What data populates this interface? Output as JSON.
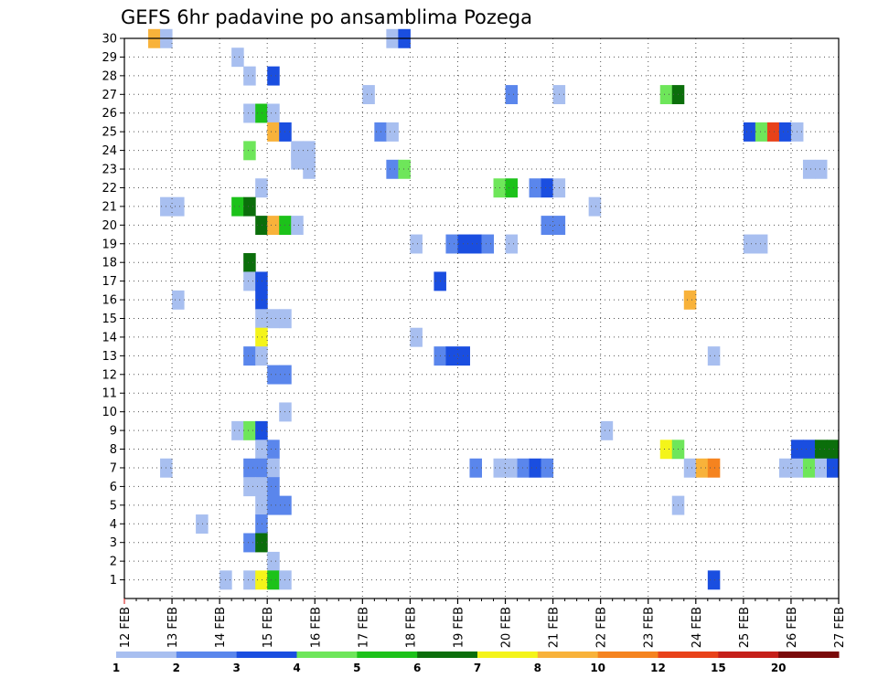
{
  "chart_data": {
    "type": "heatmap",
    "title": "GEFS 6hr padavine po ansamblima Pozega",
    "xlabel": "",
    "ylabel": "",
    "x_tick_labels": [
      "12 FEB",
      "13 FEB",
      "14 FEB",
      "15 FEB",
      "16 FEB",
      "17 FEB",
      "18 FEB",
      "19 FEB",
      "20 FEB",
      "21 FEB",
      "22 FEB",
      "23 FEB",
      "24 FEB",
      "25 FEB",
      "26 FEB",
      "27 FEB"
    ],
    "y_tick_labels": [
      "1",
      "2",
      "3",
      "4",
      "5",
      "6",
      "7",
      "8",
      "9",
      "10",
      "11",
      "12",
      "13",
      "14",
      "15",
      "16",
      "17",
      "18",
      "19",
      "20",
      "21",
      "22",
      "23",
      "24",
      "25",
      "26",
      "27",
      "28",
      "29",
      "30"
    ],
    "xlim_days": [
      0,
      15
    ],
    "ylim_members": [
      0,
      30
    ],
    "time_step_hours": 6,
    "grid": true,
    "legend": {
      "placement": "bottom",
      "levels": [
        "1",
        "2",
        "3",
        "4",
        "5",
        "6",
        "7",
        "8",
        "10",
        "12",
        "15",
        "20"
      ],
      "colors": [
        "#a8bff0",
        "#5a86ec",
        "#1a4ee0",
        "#6ee65a",
        "#1cc21a",
        "#0b6e0b",
        "#f4f41a",
        "#f8b23a",
        "#f5831f",
        "#e8421a",
        "#c5201a",
        "#7a0a0a"
      ]
    },
    "cells": [
      {
        "x": 0.5,
        "m": 30,
        "c": 8
      },
      {
        "x": 0.75,
        "m": 30,
        "c": 1
      },
      {
        "x": 5.5,
        "m": 30,
        "c": 1
      },
      {
        "x": 5.75,
        "m": 30,
        "c": 3
      },
      {
        "x": 2.25,
        "m": 29,
        "c": 1
      },
      {
        "x": 2.5,
        "m": 28,
        "c": 1
      },
      {
        "x": 3.0,
        "m": 28,
        "c": 3
      },
      {
        "x": 5.0,
        "m": 27,
        "c": 1
      },
      {
        "x": 8.0,
        "m": 27,
        "c": 2
      },
      {
        "x": 9.0,
        "m": 27,
        "c": 1
      },
      {
        "x": 11.25,
        "m": 27,
        "c": 4
      },
      {
        "x": 11.5,
        "m": 27,
        "c": 6
      },
      {
        "x": 2.5,
        "m": 26,
        "c": 1
      },
      {
        "x": 2.75,
        "m": 26,
        "c": 5
      },
      {
        "x": 3.0,
        "m": 26,
        "c": 1
      },
      {
        "x": 3.0,
        "m": 25,
        "c": 8
      },
      {
        "x": 3.25,
        "m": 25,
        "c": 3
      },
      {
        "x": 5.25,
        "m": 25,
        "c": 2
      },
      {
        "x": 5.5,
        "m": 25,
        "c": 1
      },
      {
        "x": 13.0,
        "m": 25,
        "c": 3
      },
      {
        "x": 13.25,
        "m": 25,
        "c": 4
      },
      {
        "x": 13.5,
        "m": 25,
        "c": 10
      },
      {
        "x": 13.75,
        "m": 25,
        "c": 3
      },
      {
        "x": 14.0,
        "m": 25,
        "c": 1
      },
      {
        "x": 2.5,
        "m": 24,
        "c": 4
      },
      {
        "x": 3.5,
        "m": 24,
        "c": 1
      },
      {
        "x": 3.75,
        "m": 24,
        "c": 1
      },
      {
        "x": 3.5,
        "m": 23.5,
        "c": 1
      },
      {
        "x": 3.75,
        "m": 23.5,
        "c": 1
      },
      {
        "x": 3.75,
        "m": 23,
        "c": 1
      },
      {
        "x": 5.5,
        "m": 23,
        "c": 2
      },
      {
        "x": 5.75,
        "m": 23,
        "c": 4
      },
      {
        "x": 14.25,
        "m": 23,
        "c": 1
      },
      {
        "x": 14.5,
        "m": 23,
        "c": 1
      },
      {
        "x": 2.75,
        "m": 22,
        "c": 1
      },
      {
        "x": 7.75,
        "m": 22,
        "c": 4
      },
      {
        "x": 8.0,
        "m": 22,
        "c": 5
      },
      {
        "x": 8.5,
        "m": 22,
        "c": 2
      },
      {
        "x": 8.75,
        "m": 22,
        "c": 3
      },
      {
        "x": 9.0,
        "m": 22,
        "c": 1
      },
      {
        "x": 0.75,
        "m": 21,
        "c": 1
      },
      {
        "x": 1.0,
        "m": 21,
        "c": 1
      },
      {
        "x": 2.25,
        "m": 21,
        "c": 5
      },
      {
        "x": 2.5,
        "m": 21,
        "c": 6
      },
      {
        "x": 9.75,
        "m": 21,
        "c": 1
      },
      {
        "x": 2.75,
        "m": 20,
        "c": 6
      },
      {
        "x": 3.0,
        "m": 20,
        "c": 8
      },
      {
        "x": 3.25,
        "m": 20,
        "c": 5
      },
      {
        "x": 3.5,
        "m": 20,
        "c": 1
      },
      {
        "x": 8.75,
        "m": 20,
        "c": 2
      },
      {
        "x": 9.0,
        "m": 20,
        "c": 2
      },
      {
        "x": 6.0,
        "m": 19,
        "c": 1
      },
      {
        "x": 6.75,
        "m": 19,
        "c": 2
      },
      {
        "x": 7.0,
        "m": 19,
        "c": 3
      },
      {
        "x": 7.25,
        "m": 19,
        "c": 3
      },
      {
        "x": 7.5,
        "m": 19,
        "c": 2
      },
      {
        "x": 8.0,
        "m": 19,
        "c": 1
      },
      {
        "x": 13.0,
        "m": 19,
        "c": 1
      },
      {
        "x": 13.25,
        "m": 19,
        "c": 1
      },
      {
        "x": 2.5,
        "m": 18,
        "c": 6
      },
      {
        "x": 2.5,
        "m": 17,
        "c": 1
      },
      {
        "x": 2.75,
        "m": 17,
        "c": 3
      },
      {
        "x": 6.5,
        "m": 17,
        "c": 3
      },
      {
        "x": 1.0,
        "m": 16,
        "c": 1
      },
      {
        "x": 2.75,
        "m": 16,
        "c": 3
      },
      {
        "x": 11.75,
        "m": 16,
        "c": 8
      },
      {
        "x": 2.75,
        "m": 15,
        "c": 1
      },
      {
        "x": 3.0,
        "m": 15,
        "c": 1
      },
      {
        "x": 3.25,
        "m": 15,
        "c": 1
      },
      {
        "x": 2.75,
        "m": 14,
        "c": 7
      },
      {
        "x": 6.0,
        "m": 14,
        "c": 1
      },
      {
        "x": 2.5,
        "m": 13,
        "c": 2
      },
      {
        "x": 2.75,
        "m": 13,
        "c": 1
      },
      {
        "x": 6.5,
        "m": 13,
        "c": 2
      },
      {
        "x": 6.75,
        "m": 13,
        "c": 3
      },
      {
        "x": 7.0,
        "m": 13,
        "c": 3
      },
      {
        "x": 12.25,
        "m": 13,
        "c": 1
      },
      {
        "x": 3.0,
        "m": 12,
        "c": 2
      },
      {
        "x": 3.25,
        "m": 12,
        "c": 2
      },
      {
        "x": 3.25,
        "m": 10,
        "c": 1
      },
      {
        "x": 2.25,
        "m": 9,
        "c": 1
      },
      {
        "x": 2.5,
        "m": 9,
        "c": 4
      },
      {
        "x": 2.75,
        "m": 9,
        "c": 3
      },
      {
        "x": 10.0,
        "m": 9,
        "c": 1
      },
      {
        "x": 2.75,
        "m": 8,
        "c": 1
      },
      {
        "x": 3.0,
        "m": 8,
        "c": 2
      },
      {
        "x": 11.25,
        "m": 8,
        "c": 7
      },
      {
        "x": 11.5,
        "m": 8,
        "c": 4
      },
      {
        "x": 14.0,
        "m": 8,
        "c": 3
      },
      {
        "x": 14.25,
        "m": 8,
        "c": 3
      },
      {
        "x": 14.5,
        "m": 8,
        "c": 6
      },
      {
        "x": 14.75,
        "m": 8,
        "c": 6
      },
      {
        "x": 0.75,
        "m": 7,
        "c": 1
      },
      {
        "x": 2.5,
        "m": 7,
        "c": 2
      },
      {
        "x": 2.75,
        "m": 7,
        "c": 2
      },
      {
        "x": 3.0,
        "m": 7,
        "c": 1
      },
      {
        "x": 7.25,
        "m": 7,
        "c": 2
      },
      {
        "x": 7.75,
        "m": 7,
        "c": 1
      },
      {
        "x": 8.0,
        "m": 7,
        "c": 1
      },
      {
        "x": 8.25,
        "m": 7,
        "c": 2
      },
      {
        "x": 8.5,
        "m": 7,
        "c": 3
      },
      {
        "x": 8.75,
        "m": 7,
        "c": 2
      },
      {
        "x": 11.75,
        "m": 7,
        "c": 1
      },
      {
        "x": 12.0,
        "m": 7,
        "c": 8
      },
      {
        "x": 12.25,
        "m": 7,
        "c": 9
      },
      {
        "x": 13.75,
        "m": 7,
        "c": 1
      },
      {
        "x": 14.0,
        "m": 7,
        "c": 1
      },
      {
        "x": 14.25,
        "m": 7,
        "c": 4
      },
      {
        "x": 14.5,
        "m": 7,
        "c": 1
      },
      {
        "x": 14.75,
        "m": 7,
        "c": 3
      },
      {
        "x": 2.5,
        "m": 6,
        "c": 1
      },
      {
        "x": 2.75,
        "m": 6,
        "c": 1
      },
      {
        "x": 3.0,
        "m": 6,
        "c": 2
      },
      {
        "x": 2.75,
        "m": 5,
        "c": 1
      },
      {
        "x": 3.0,
        "m": 5,
        "c": 2
      },
      {
        "x": 3.25,
        "m": 5,
        "c": 2
      },
      {
        "x": 11.5,
        "m": 5,
        "c": 1
      },
      {
        "x": 1.5,
        "m": 4,
        "c": 1
      },
      {
        "x": 2.75,
        "m": 4,
        "c": 2
      },
      {
        "x": 2.5,
        "m": 3,
        "c": 2
      },
      {
        "x": 2.75,
        "m": 3,
        "c": 6
      },
      {
        "x": 3.0,
        "m": 2,
        "c": 1
      },
      {
        "x": 2.0,
        "m": 1,
        "c": 1
      },
      {
        "x": 2.5,
        "m": 1,
        "c": 1
      },
      {
        "x": 2.75,
        "m": 1,
        "c": 7
      },
      {
        "x": 3.0,
        "m": 1,
        "c": 5
      },
      {
        "x": 3.25,
        "m": 1,
        "c": 1
      },
      {
        "x": 12.25,
        "m": 1,
        "c": 3
      }
    ]
  }
}
